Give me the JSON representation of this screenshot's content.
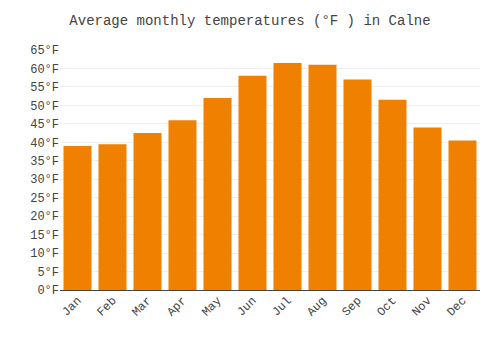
{
  "chart_data": {
    "type": "bar",
    "title": "Average monthly temperatures (°F ) in Calne",
    "categories": [
      "Jan",
      "Feb",
      "Mar",
      "Apr",
      "May",
      "Jun",
      "Jul",
      "Aug",
      "Sep",
      "Oct",
      "Nov",
      "Dec"
    ],
    "values": [
      39.0,
      39.5,
      42.5,
      46.0,
      52.0,
      58.0,
      61.5,
      61.0,
      57.0,
      51.5,
      44.0,
      40.5
    ],
    "color": "#F08000",
    "ylim": [
      0,
      65
    ],
    "yticks": [
      {
        "value": 0,
        "label": "0°F"
      },
      {
        "value": 5,
        "label": "5°F"
      },
      {
        "value": 10,
        "label": "10°F"
      },
      {
        "value": 15,
        "label": "15°F"
      },
      {
        "value": 20,
        "label": "20°F"
      },
      {
        "value": 25,
        "label": "25°F"
      },
      {
        "value": 30,
        "label": "30°F"
      },
      {
        "value": 35,
        "label": "35°F"
      },
      {
        "value": 40,
        "label": "40°F"
      },
      {
        "value": 45,
        "label": "45°F"
      },
      {
        "value": 50,
        "label": "50°F"
      },
      {
        "value": 55,
        "label": "55°F"
      },
      {
        "value": 60,
        "label": "60°F"
      },
      {
        "value": 65,
        "label": "65°F"
      }
    ],
    "grid": true
  }
}
